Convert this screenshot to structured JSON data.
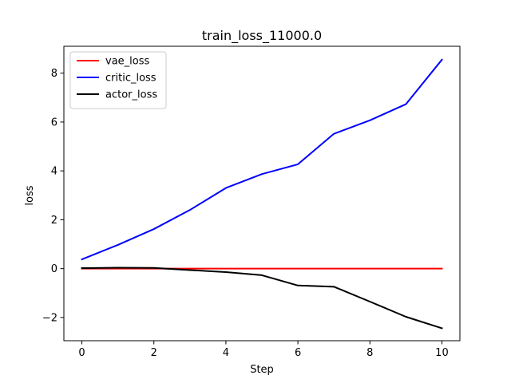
{
  "chart_data": {
    "type": "line",
    "title": "train_loss_11000.0",
    "xlabel": "Step",
    "ylabel": "loss",
    "xlim": [
      -0.5,
      10.5
    ],
    "ylim": [
      -2.95,
      9.1
    ],
    "xticks": [
      0,
      2,
      4,
      6,
      8,
      10
    ],
    "yticks": [
      -2,
      0,
      2,
      4,
      6,
      8
    ],
    "x": [
      0,
      1,
      2,
      3,
      4,
      5,
      6,
      7,
      8,
      9,
      10
    ],
    "series": [
      {
        "name": "vae_loss",
        "color": "#ff0000",
        "values": [
          0.0,
          0.0,
          0.0,
          0.0,
          0.0,
          0.0,
          0.0,
          0.0,
          0.0,
          0.0,
          0.0
        ]
      },
      {
        "name": "critic_loss",
        "color": "#0000ff",
        "values": [
          0.38,
          0.97,
          1.62,
          2.4,
          3.3,
          3.87,
          4.27,
          5.52,
          6.07,
          6.73,
          8.55
        ]
      },
      {
        "name": "actor_loss",
        "color": "#000000",
        "values": [
          0.02,
          0.04,
          0.03,
          -0.06,
          -0.14,
          -0.27,
          -0.69,
          -0.74,
          -1.35,
          -1.97,
          -2.44
        ]
      }
    ],
    "legend": "upper-left",
    "grid": false
  }
}
